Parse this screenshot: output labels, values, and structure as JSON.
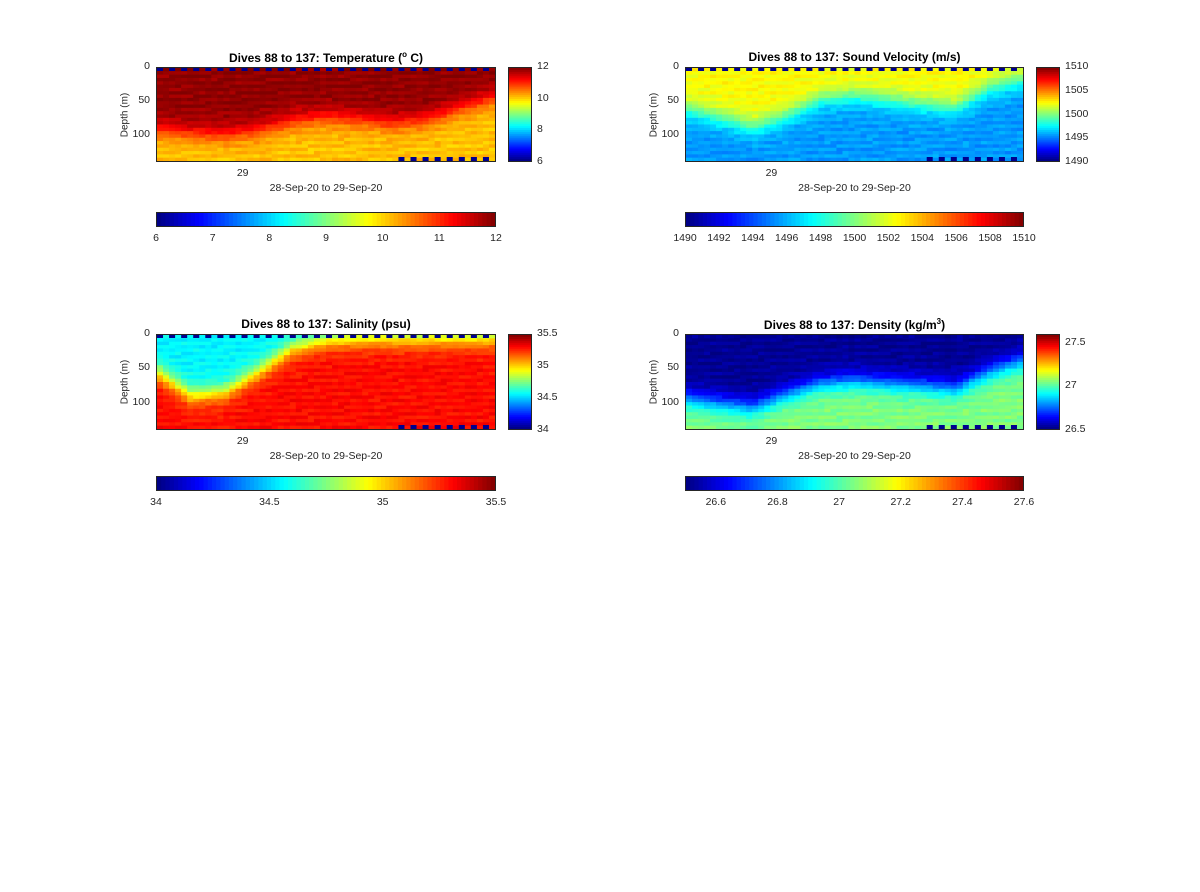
{
  "chart_data": [
    {
      "type": "heatmap",
      "key": "temperature",
      "title_main": "Dives 88 to 137: Temperature (",
      "title_sup": "o",
      "title_end": " C)",
      "xlabel": "28-Sep-20 to 29-Sep-20",
      "ylabel": "Depth (m)",
      "x_ticks": [
        "29"
      ],
      "y_ticks": [
        "0",
        "50",
        "100"
      ],
      "ylim": [
        0,
        140
      ],
      "clim": [
        6,
        12
      ],
      "colorbar_ticks": [
        "12",
        "10",
        "8",
        "6"
      ],
      "h_colorbar_ticks": [
        "6",
        "7",
        "8",
        "9",
        "10",
        "11",
        "12"
      ],
      "colormap": "jet",
      "x_profile_pct": [
        0,
        10,
        20,
        30,
        40,
        50,
        60,
        70,
        80,
        90,
        100
      ],
      "thermocline_depth_m": [
        92,
        98,
        101,
        94,
        80,
        74,
        78,
        84,
        78,
        60,
        45
      ],
      "surface_value": 11.9,
      "deep_value": 10.1
    },
    {
      "type": "heatmap",
      "key": "sound_velocity",
      "title_main": "Dives 88 to 137: Sound Velocity (m/s)",
      "title_sup": "",
      "title_end": "",
      "xlabel": "28-Sep-20 to 29-Sep-20",
      "ylabel": "Depth (m)",
      "x_ticks": [
        "29"
      ],
      "y_ticks": [
        "0",
        "50",
        "100"
      ],
      "ylim": [
        0,
        140
      ],
      "clim": [
        1490,
        1510
      ],
      "colorbar_ticks": [
        "1510",
        "1505",
        "1500",
        "1495",
        "1490"
      ],
      "h_colorbar_ticks": [
        "1490",
        "1492",
        "1494",
        "1496",
        "1498",
        "1500",
        "1502",
        "1504",
        "1506",
        "1508",
        "1510"
      ],
      "colormap": "jet",
      "x_profile_pct": [
        0,
        10,
        20,
        30,
        40,
        50,
        60,
        70,
        80,
        90,
        100
      ],
      "thermocline_depth_m": [
        62,
        75,
        90,
        72,
        48,
        42,
        48,
        55,
        60,
        30,
        18
      ],
      "surface_value": 1502.5,
      "deep_value": 1495.5
    },
    {
      "type": "heatmap",
      "key": "salinity",
      "title_main": "Dives 88 to 137: Salinity (psu)",
      "title_sup": "",
      "title_end": "",
      "xlabel": "28-Sep-20 to 29-Sep-20",
      "ylabel": "Depth (m)",
      "x_ticks": [
        "29"
      ],
      "y_ticks": [
        "0",
        "50",
        "100"
      ],
      "ylim": [
        0,
        140
      ],
      "clim": [
        34,
        35.5
      ],
      "colorbar_ticks": [
        "35.5",
        "35",
        "34.5",
        "34"
      ],
      "h_colorbar_ticks": [
        "34",
        "34.5",
        "35",
        "35.5"
      ],
      "colormap": "jet",
      "x_profile_pct": [
        0,
        10,
        20,
        30,
        40,
        50,
        60,
        70,
        80,
        90,
        100
      ],
      "thermocline_depth_m": [
        55,
        90,
        85,
        55,
        20,
        8,
        5,
        5,
        5,
        5,
        5
      ],
      "surface_value": 34.55,
      "deep_value": 35.3
    },
    {
      "type": "heatmap",
      "key": "density",
      "title_main": "Dives 88 to 137: Density (kg/m",
      "title_sup": "3",
      "title_end": ")",
      "xlabel": "28-Sep-20 to 29-Sep-20",
      "ylabel": "Depth (m)",
      "x_ticks": [
        "29"
      ],
      "y_ticks": [
        "0",
        "50",
        "100"
      ],
      "ylim": [
        0,
        140
      ],
      "clim": [
        26.5,
        27.6
      ],
      "colorbar_ticks": [
        "27.5",
        "27",
        "26.5"
      ],
      "h_colorbar_ticks": [
        "26.6",
        "26.8",
        "27",
        "27.2",
        "27.4",
        "27.6"
      ],
      "colormap": "jet",
      "x_profile_pct": [
        0,
        10,
        20,
        30,
        40,
        50,
        60,
        70,
        80,
        90,
        100
      ],
      "thermocline_depth_m": [
        95,
        102,
        108,
        88,
        72,
        68,
        72,
        75,
        80,
        55,
        38
      ],
      "surface_value": 26.52,
      "deep_value": 27.05
    }
  ]
}
